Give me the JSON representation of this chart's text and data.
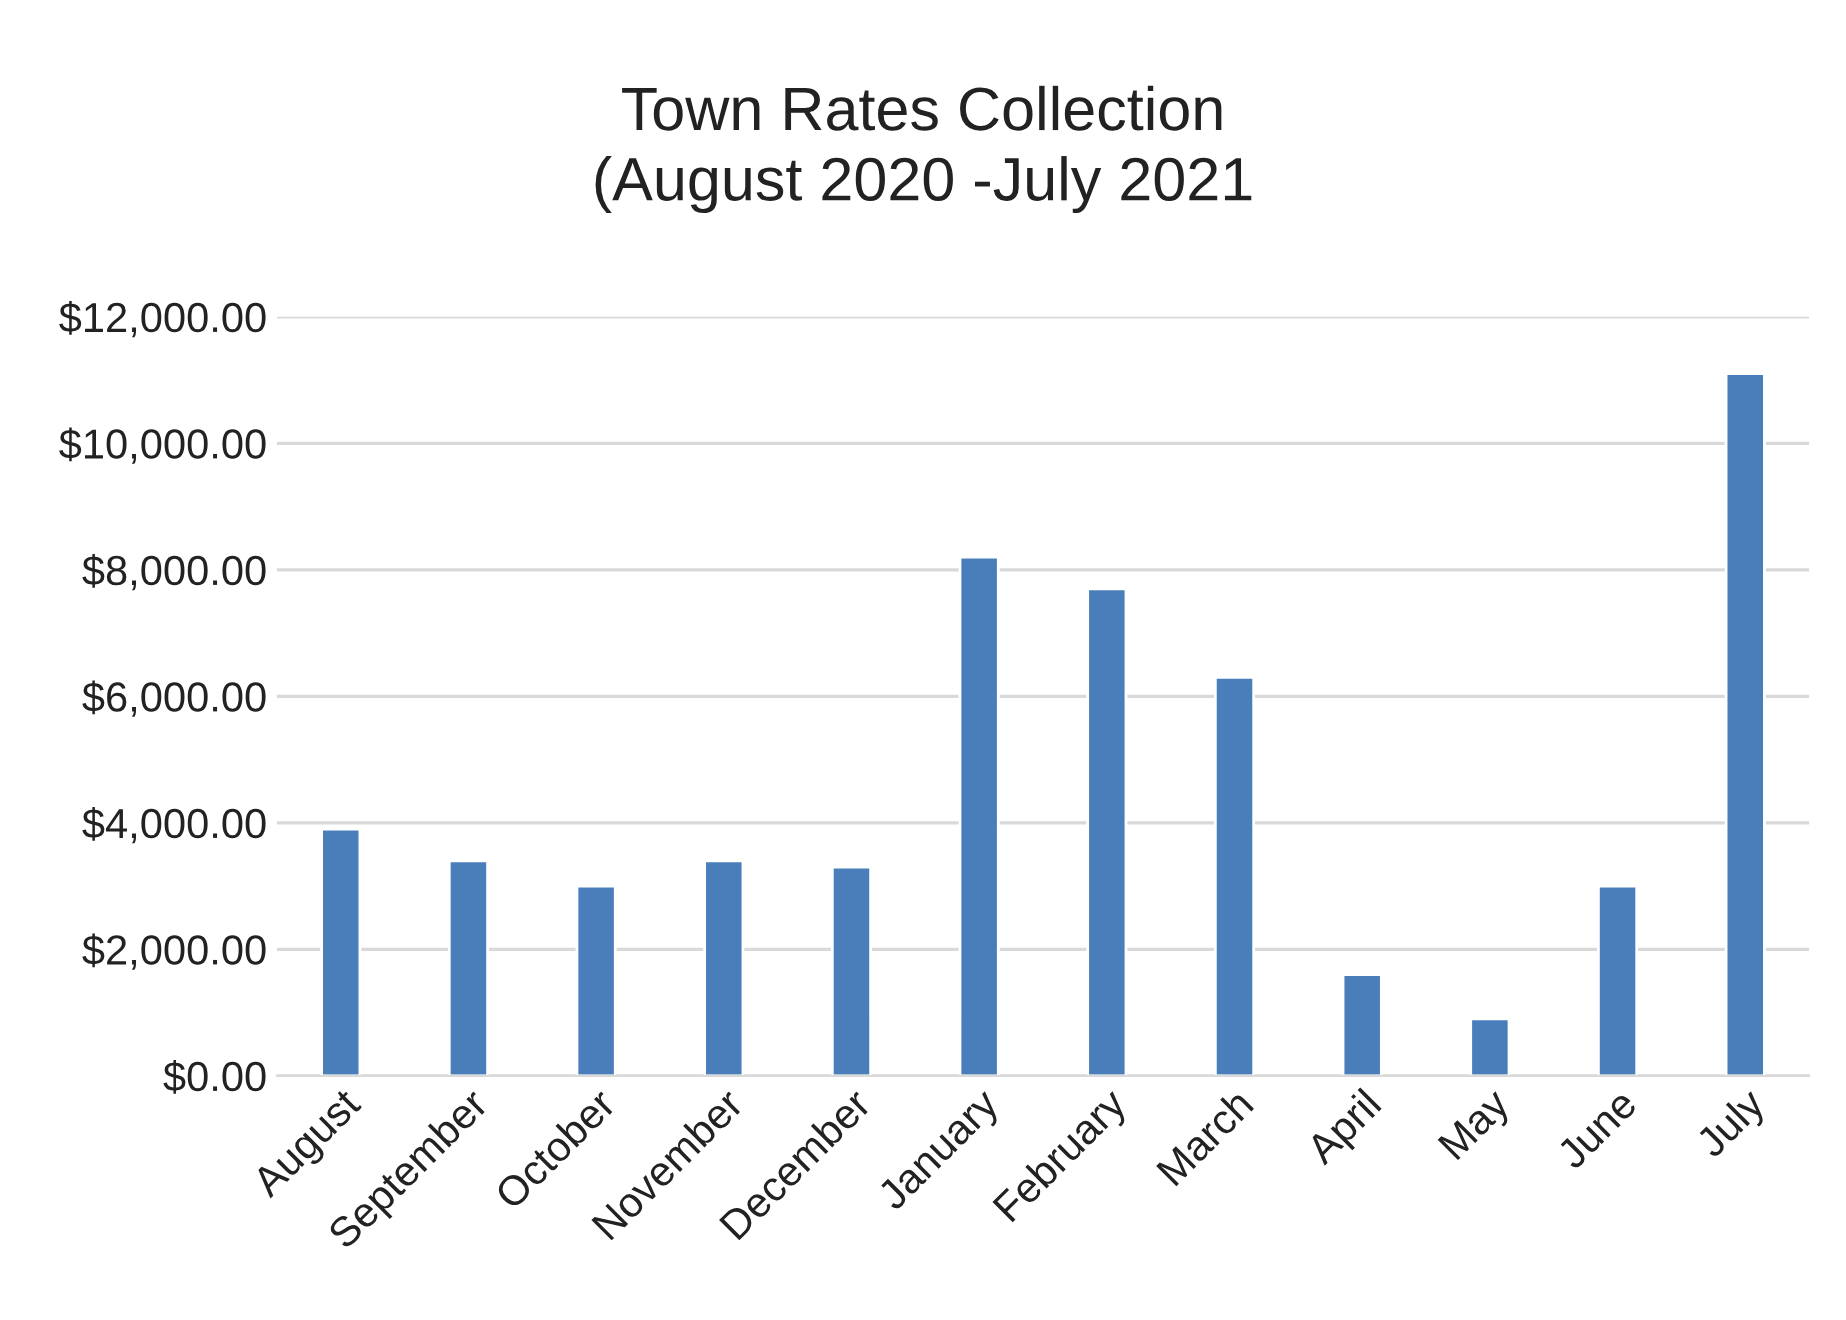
{
  "chart_data": {
    "type": "bar",
    "title": "Town Rates Collection\n(August 2020 -July 2021",
    "categories": [
      "August",
      "September",
      "October",
      "November",
      "December",
      "January",
      "February",
      "March",
      "April",
      "May",
      "June",
      "July"
    ],
    "values": [
      3900,
      3400,
      3000,
      3400,
      3300,
      8200,
      7700,
      6300,
      1600,
      900,
      3000,
      11100
    ],
    "color": "#4a7ebb",
    "ylim": [
      0,
      12000
    ],
    "yticks": [
      {
        "value": 0,
        "label": "$0.00"
      },
      {
        "value": 2000,
        "label": "$2,000.00"
      },
      {
        "value": 4000,
        "label": "$4,000.00"
      },
      {
        "value": 6000,
        "label": "$6,000.00"
      },
      {
        "value": 8000,
        "label": "$8,000.00"
      },
      {
        "value": 10000,
        "label": "$10,000.00"
      },
      {
        "value": 12000,
        "label": "$12,000.00"
      }
    ],
    "grid": "y",
    "legend": false
  }
}
